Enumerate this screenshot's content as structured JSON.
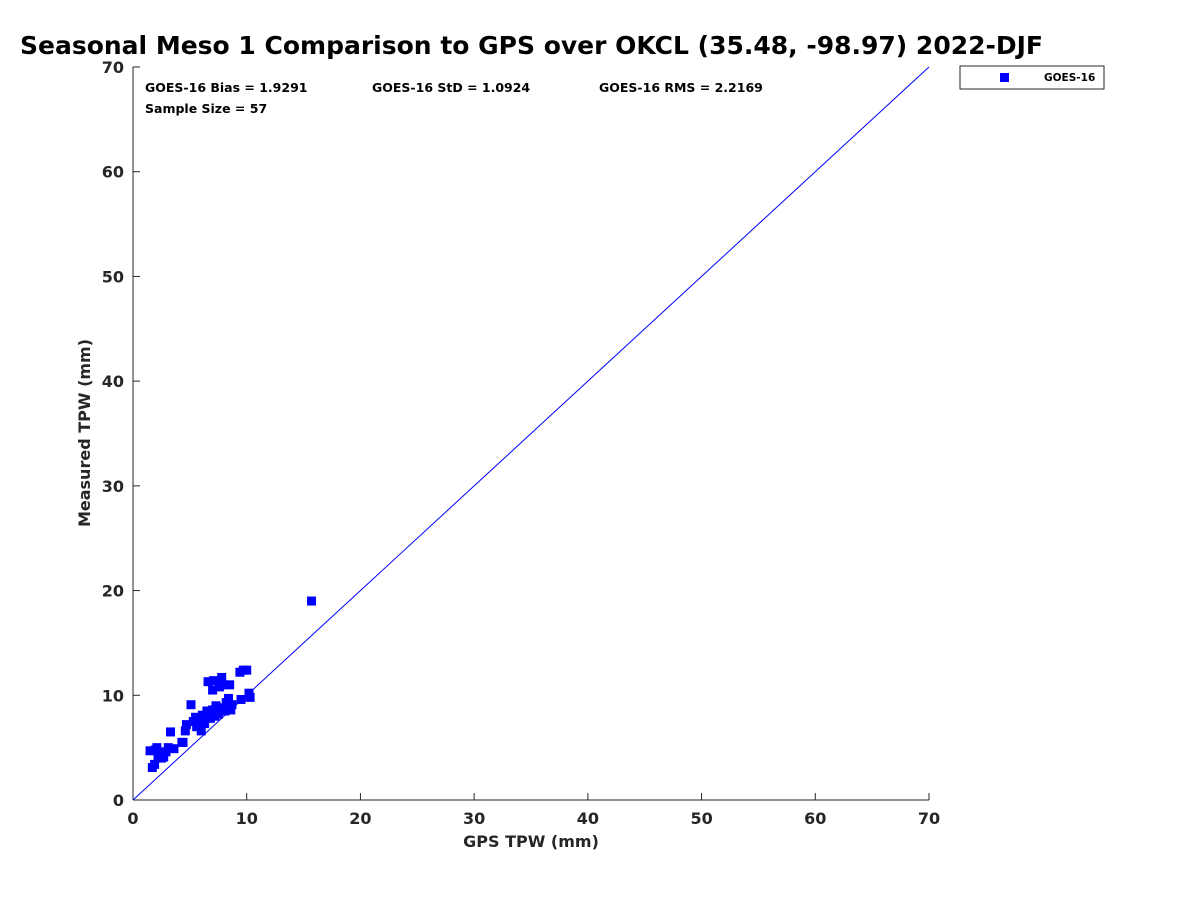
{
  "chart_data": {
    "type": "scatter",
    "title": "Seasonal Meso 1 Comparison to GPS over OKCL (35.48, -98.97) 2022-DJF",
    "xlabel": "GPS TPW (mm)",
    "ylabel": "Measured TPW (mm)",
    "xlim": [
      0,
      70
    ],
    "ylim": [
      0,
      70
    ],
    "xticks": [
      "0",
      "10",
      "20",
      "30",
      "40",
      "50",
      "60",
      "70"
    ],
    "yticks": [
      "0",
      "10",
      "20",
      "30",
      "40",
      "50",
      "60",
      "70"
    ],
    "grid": false,
    "legend_position": "outside-top-right",
    "reference_line": {
      "name": "1:1",
      "x": [
        0,
        70
      ],
      "y": [
        0,
        70
      ],
      "color": "#0000ff"
    },
    "series": [
      {
        "name": "GOES-16",
        "color": "#0000ff",
        "marker": "square",
        "points": [
          [
            1.5,
            4.7
          ],
          [
            1.7,
            3.1
          ],
          [
            1.9,
            3.4
          ],
          [
            2.0,
            4.8
          ],
          [
            2.1,
            5.0
          ],
          [
            2.2,
            4.2
          ],
          [
            2.4,
            4.5
          ],
          [
            2.5,
            4.0
          ],
          [
            2.7,
            4.1
          ],
          [
            2.9,
            4.6
          ],
          [
            3.1,
            5.0
          ],
          [
            3.3,
            6.5
          ],
          [
            3.6,
            4.9
          ],
          [
            4.3,
            5.5
          ],
          [
            4.6,
            6.6
          ],
          [
            4.7,
            7.2
          ],
          [
            5.1,
            9.1
          ],
          [
            5.3,
            7.5
          ],
          [
            5.5,
            7.9
          ],
          [
            5.6,
            7.0
          ],
          [
            5.8,
            7.6
          ],
          [
            6.0,
            6.6
          ],
          [
            6.1,
            8.1
          ],
          [
            6.3,
            7.3
          ],
          [
            6.5,
            8.5
          ],
          [
            6.6,
            11.3
          ],
          [
            6.8,
            7.8
          ],
          [
            6.9,
            8.4
          ],
          [
            7.0,
            10.5
          ],
          [
            7.1,
            11.4
          ],
          [
            7.2,
            8.0
          ],
          [
            7.3,
            9.0
          ],
          [
            7.4,
            8.5
          ],
          [
            7.5,
            8.2
          ],
          [
            7.6,
            10.8
          ],
          [
            7.7,
            8.7
          ],
          [
            7.8,
            11.7
          ],
          [
            7.9,
            11.0
          ],
          [
            8.0,
            8.8
          ],
          [
            8.1,
            8.5
          ],
          [
            8.2,
            9.3
          ],
          [
            8.3,
            8.9
          ],
          [
            8.4,
            9.7
          ],
          [
            8.5,
            11.0
          ],
          [
            8.6,
            8.6
          ],
          [
            8.7,
            9.1
          ],
          [
            9.4,
            12.2
          ],
          [
            9.5,
            9.6
          ],
          [
            9.7,
            12.4
          ],
          [
            10.0,
            12.4
          ],
          [
            10.2,
            10.2
          ],
          [
            10.3,
            9.8
          ],
          [
            15.7,
            19.0
          ],
          [
            6.2,
            7.7
          ],
          [
            7.0,
            8.6
          ],
          [
            5.9,
            7.3
          ],
          [
            4.4,
            5.5
          ]
        ]
      }
    ],
    "stats": {
      "bias": "GOES-16 Bias = 1.9291",
      "std": "GOES-16 StD = 1.0924",
      "rms": "GOES-16 RMS = 2.2169",
      "sample": "Sample Size = 57"
    }
  }
}
